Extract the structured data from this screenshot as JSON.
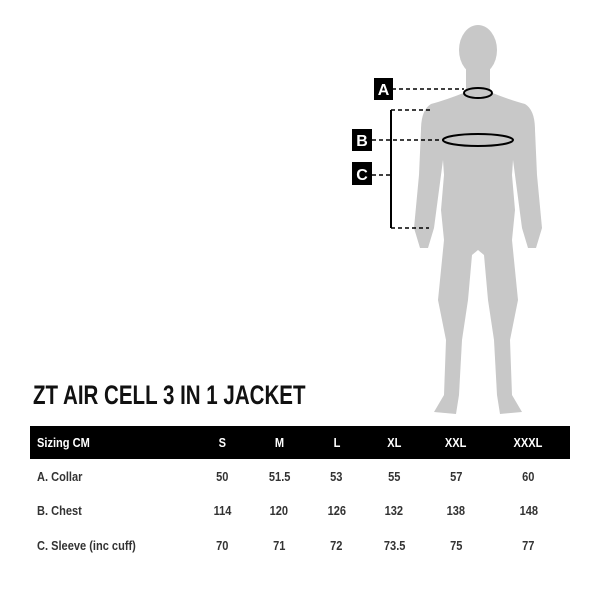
{
  "figure": {
    "markers": [
      "A",
      "B",
      "C"
    ],
    "silhouette_color": "#c8c8c8"
  },
  "title": "ZT AIR CELL 3 IN 1 JACKET",
  "table": {
    "header": [
      "Sizing CM",
      "S",
      "M",
      "L",
      "XL",
      "XXL",
      "XXXL"
    ],
    "rows": [
      [
        "A. Collar",
        "50",
        "51.5",
        "53",
        "55",
        "57",
        "60"
      ],
      [
        "B. Chest",
        "114",
        "120",
        "126",
        "132",
        "138",
        "148"
      ],
      [
        "C. Sleeve (inc cuff)",
        "70",
        "71",
        "72",
        "73.5",
        "75",
        "77"
      ]
    ]
  }
}
